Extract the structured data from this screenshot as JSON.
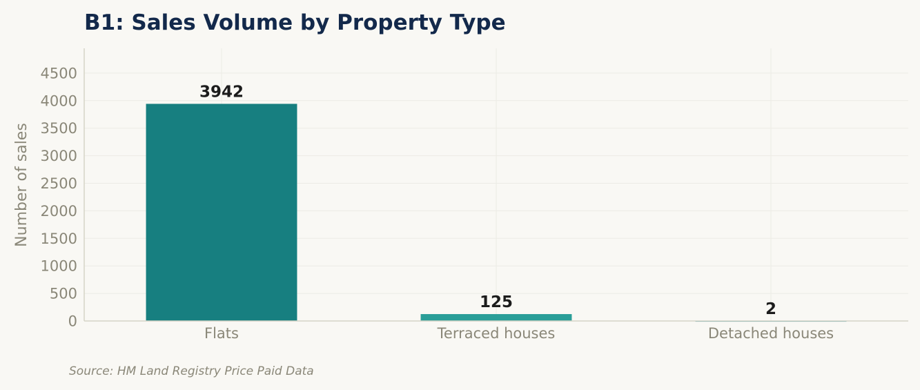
{
  "chart_data": {
    "type": "bar",
    "title": "B1: Sales Volume by Property Type",
    "xlabel": "",
    "ylabel": "Number of sales",
    "categories": [
      "Flats",
      "Terraced houses",
      "Detached houses"
    ],
    "values": [
      3942,
      125,
      2
    ],
    "value_labels": [
      "3942",
      "125",
      "2"
    ],
    "ylim": [
      0,
      4950
    ],
    "yticks": [
      0,
      500,
      1000,
      1500,
      2000,
      2500,
      3000,
      3500,
      4000,
      4500
    ],
    "grid": true,
    "bar_colors": [
      "#177f80",
      "#2a9e98",
      "#2a8a9e"
    ],
    "source": "Source: HM Land Registry Price Paid Data"
  }
}
